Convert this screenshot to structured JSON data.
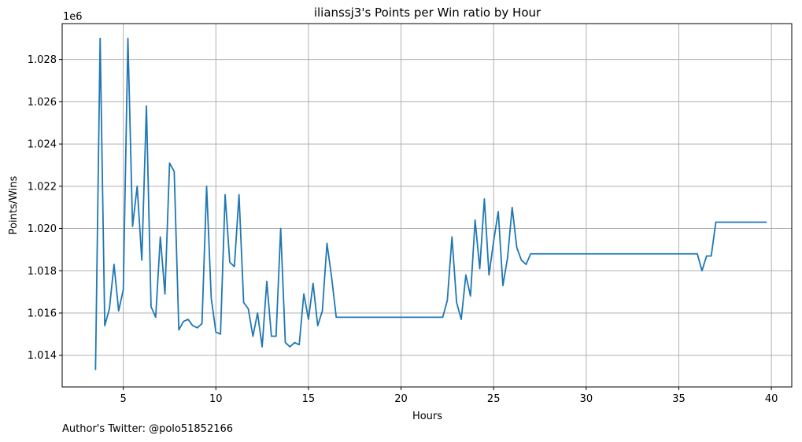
{
  "footer": {
    "twitter": "Author's Twitter: @polo51852166"
  },
  "chart_data": {
    "type": "line",
    "title": "ilianssj3's Points per Win ratio by Hour",
    "xlabel": "Hours",
    "ylabel": "Points/Wins",
    "y_offset_label": "1e6",
    "xlim": [
      1.7,
      41.1
    ],
    "ylim": [
      1.0125,
      1.0297
    ],
    "x_ticks": [
      5,
      10,
      15,
      20,
      25,
      30,
      35,
      40
    ],
    "y_ticks": [
      1.014,
      1.016,
      1.018,
      1.02,
      1.022,
      1.024,
      1.026,
      1.028
    ],
    "y_tick_labels": [
      "1.014",
      "1.016",
      "1.018",
      "1.020",
      "1.022",
      "1.024",
      "1.026",
      "1.028"
    ],
    "grid": true,
    "color": "#1f77b4",
    "series": [
      {
        "x": [
          3.5,
          3.75,
          4.0,
          4.25,
          4.5,
          4.75,
          5.0,
          5.25,
          5.5,
          5.75,
          6.0,
          6.25,
          6.5,
          6.75,
          7.0,
          7.25,
          7.5,
          7.75,
          8.0,
          8.25,
          8.5,
          8.75,
          9.0,
          9.25,
          9.5,
          9.75,
          10.0,
          10.25,
          10.5,
          10.75,
          11.0,
          11.25,
          11.5,
          11.75,
          12.0,
          12.25,
          12.5,
          12.75,
          13.0,
          13.25,
          13.5,
          13.75,
          14.0,
          14.25,
          14.5,
          14.75,
          15.0,
          15.25,
          15.5,
          15.75,
          16.0,
          16.25,
          16.5,
          22.25,
          22.5,
          22.75,
          23.0,
          23.25,
          23.5,
          23.75,
          24.0,
          24.25,
          24.5,
          24.75,
          25.0,
          25.25,
          25.5,
          25.75,
          26.0,
          26.25,
          26.5,
          26.75,
          27.0,
          36.0,
          36.25,
          36.5,
          36.75,
          37.0,
          39.75
        ],
        "y": [
          1.0133,
          1.029,
          1.0154,
          1.0162,
          1.0183,
          1.0161,
          1.0171,
          1.029,
          1.0201,
          1.022,
          1.0185,
          1.0258,
          1.0163,
          1.0158,
          1.0196,
          1.0169,
          1.0231,
          1.0227,
          1.0152,
          1.0156,
          1.0157,
          1.0154,
          1.0153,
          1.0155,
          1.022,
          1.0167,
          1.0151,
          1.015,
          1.0216,
          1.0184,
          1.0182,
          1.0216,
          1.0165,
          1.0162,
          1.0149,
          1.016,
          1.0144,
          1.0175,
          1.0149,
          1.0149,
          1.02,
          1.0146,
          1.0144,
          1.0146,
          1.0145,
          1.0169,
          1.0157,
          1.0174,
          1.0154,
          1.0161,
          1.0193,
          1.0177,
          1.0158,
          1.0158,
          1.0166,
          1.0196,
          1.0165,
          1.0157,
          1.0178,
          1.0168,
          1.0204,
          1.0181,
          1.0214,
          1.0178,
          1.0194,
          1.0208,
          1.0173,
          1.0186,
          1.021,
          1.0191,
          1.0185,
          1.0183,
          1.0188,
          1.0188,
          1.018,
          1.0187,
          1.0187,
          1.0203,
          1.0203
        ]
      }
    ]
  }
}
